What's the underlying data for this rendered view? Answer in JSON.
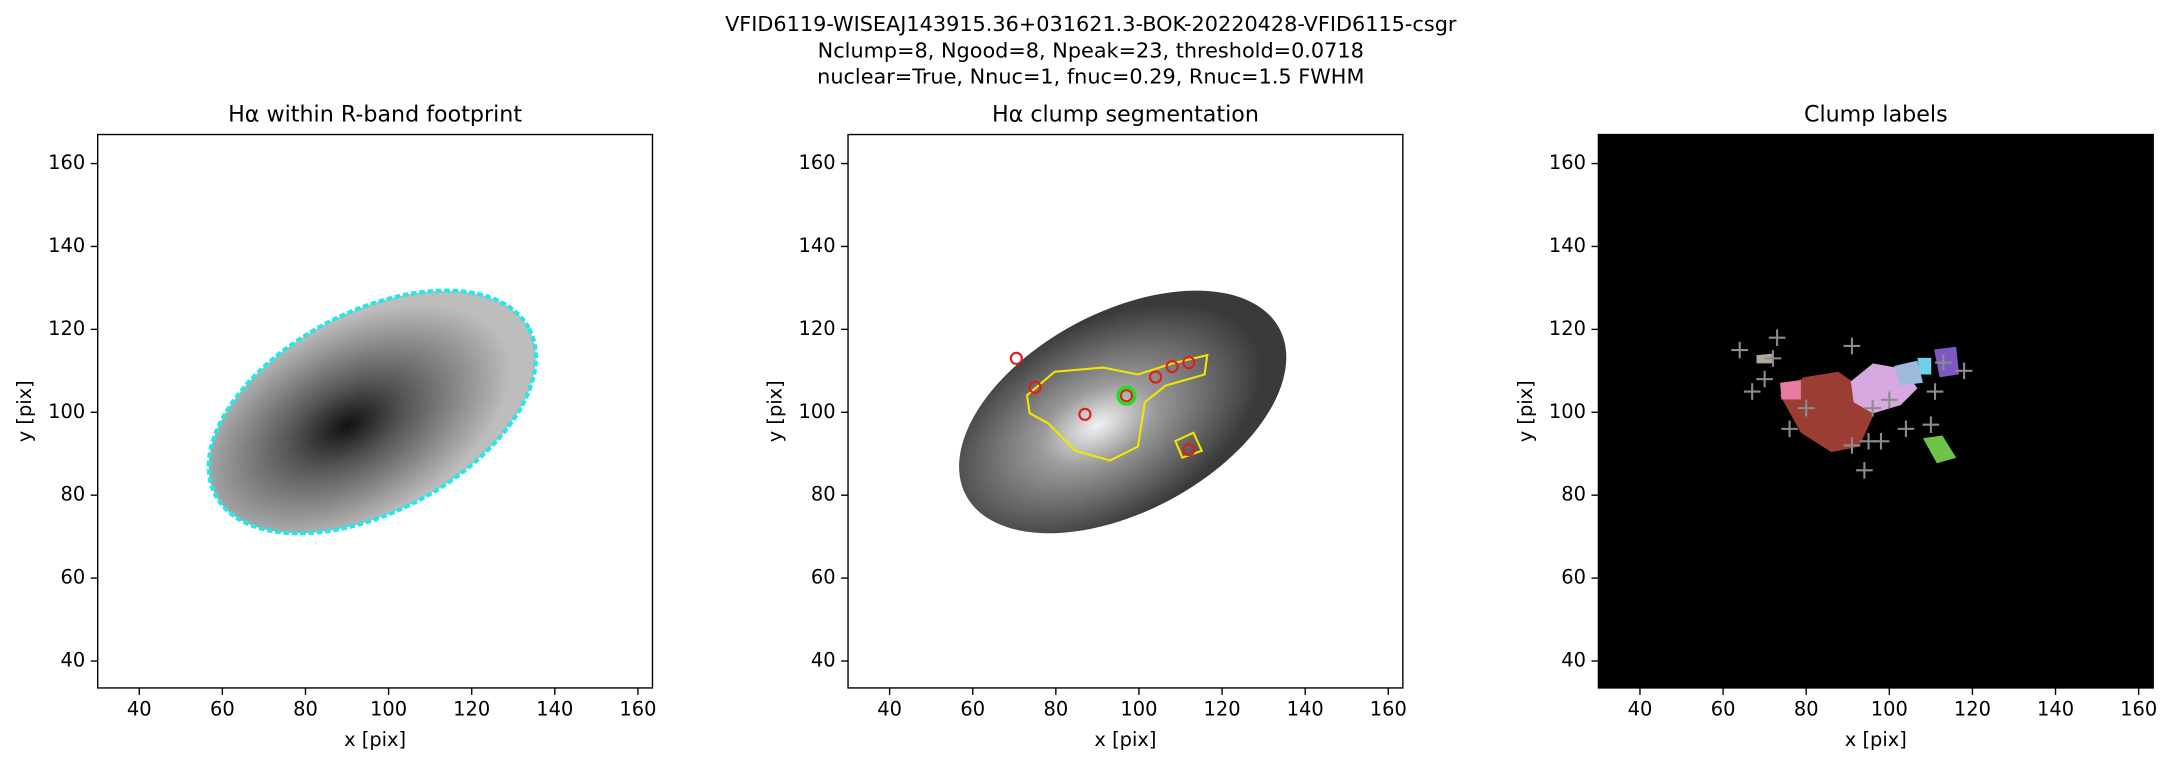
{
  "figure": {
    "title_lines": [
      "VFID6119-WISEAJ143915.36+031621.3-BOK-20220428-VFID6115-csgr",
      "Nclump=8, Ngood=8, Npeak=23, threshold=0.0718",
      "nuclear=True, Nnuc=1, fnuc=0.29, Rnuc=1.5 FWHM"
    ]
  },
  "chart_data": [
    {
      "type": "image",
      "title": "Hα within R-band footprint",
      "x_label": "x [pix]",
      "y_label": "y [pix]",
      "xlim": [
        30,
        163.5
      ],
      "ylim": [
        33.5,
        167
      ],
      "xticks": [
        40,
        60,
        80,
        100,
        120,
        140,
        160
      ],
      "yticks": [
        40,
        60,
        80,
        100,
        120,
        140,
        160
      ],
      "facecolor": "#ffffff"
    },
    {
      "type": "scatter",
      "title": "Hα clump segmentation",
      "x_label": "x [pix]",
      "y_label": "y [pix]",
      "xlim": [
        30,
        163.5
      ],
      "ylim": [
        33.5,
        167
      ],
      "xticks": [
        40,
        60,
        80,
        100,
        120,
        140,
        160
      ],
      "yticks": [
        40,
        60,
        80,
        100,
        120,
        140,
        160
      ],
      "facecolor": "#ffffff",
      "series": [
        {
          "color": "#e41a1c",
          "marker": "o",
          "x": [
            70.5,
            75,
            87,
            97,
            104,
            108,
            112,
            112
          ],
          "values": [
            113,
            106,
            99.5,
            104,
            108.5,
            111,
            112,
            91
          ]
        },
        {
          "color": "#22dd22",
          "marker": "O",
          "x": [
            97
          ],
          "values": [
            104
          ]
        }
      ]
    },
    {
      "type": "scatter",
      "title": "Clump labels",
      "x_label": "x [pix]",
      "y_label": "y [pix]",
      "xlim": [
        30,
        163.5
      ],
      "ylim": [
        33.5,
        167
      ],
      "xticks": [
        40,
        60,
        80,
        100,
        120,
        140,
        160
      ],
      "yticks": [
        40,
        60,
        80,
        100,
        120,
        140,
        160
      ],
      "facecolor": "#000000",
      "series": [
        {
          "color": "#8c8c8c",
          "marker": "+",
          "x": [
            64,
            73,
            91,
            67,
            70,
            72,
            80,
            76,
            91,
            95,
            94,
            98,
            96,
            100,
            104,
            110,
            111,
            118,
            113
          ],
          "values": [
            115,
            118,
            116,
            105,
            108,
            113,
            101,
            96,
            92,
            93,
            86,
            93,
            101,
            103,
            96,
            97,
            105,
            110,
            112
          ]
        }
      ]
    }
  ]
}
